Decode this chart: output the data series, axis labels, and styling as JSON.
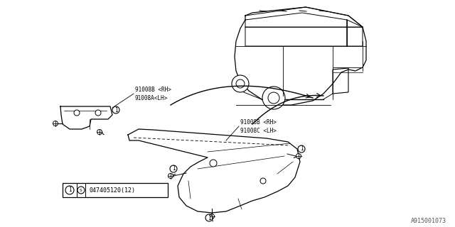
{
  "bg_color": "#ffffff",
  "line_color": "#000000",
  "gray_color": "#555555",
  "title_ref": "A915001073",
  "label1a": "91008B <RH>",
  "label1b": "91008A<LH>",
  "label2a": "91008B <RH>",
  "label2b": "91008C <LH>",
  "part_label": "047405120(12)",
  "fig_width": 6.4,
  "fig_height": 3.2,
  "dpi": 100
}
